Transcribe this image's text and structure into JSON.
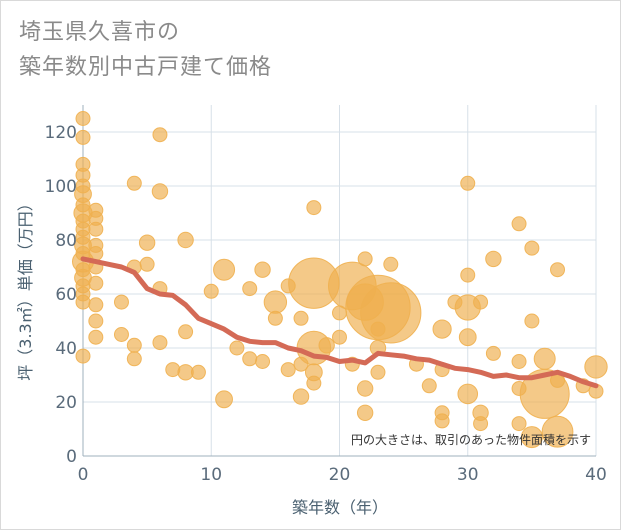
{
  "title": {
    "line1": "埼玉県久喜市の",
    "line2": "築年数別中古戸建て価格"
  },
  "colors": {
    "bubble": "#efb04f",
    "trend": "#d46a56",
    "grid": "#d7e0e8",
    "axis": "#5a6b7b"
  },
  "chart_data": {
    "type": "scatter",
    "xlabel": "築年数（年）",
    "ylabel": "坪（3.3㎡）単価（万円）",
    "xlim": [
      0,
      40
    ],
    "ylim": [
      0,
      130
    ],
    "xticks": [
      0,
      10,
      20,
      30,
      40
    ],
    "yticks": [
      0,
      20,
      40,
      60,
      80,
      100,
      120
    ],
    "grid": true,
    "annotation": "円の大きさは、取引のあった物件面積を示す",
    "points": [
      {
        "x": 0,
        "y": 125,
        "s": 1
      },
      {
        "x": 0,
        "y": 118,
        "s": 1
      },
      {
        "x": 0,
        "y": 108,
        "s": 1
      },
      {
        "x": 0,
        "y": 104,
        "s": 1
      },
      {
        "x": 0,
        "y": 100,
        "s": 1
      },
      {
        "x": 0,
        "y": 97,
        "s": 1.2
      },
      {
        "x": 0,
        "y": 93,
        "s": 1
      },
      {
        "x": 0,
        "y": 90,
        "s": 1.3
      },
      {
        "x": 0,
        "y": 87,
        "s": 1
      },
      {
        "x": 0,
        "y": 84,
        "s": 1
      },
      {
        "x": 0,
        "y": 81,
        "s": 1
      },
      {
        "x": 0,
        "y": 78,
        "s": 1.2
      },
      {
        "x": 0,
        "y": 75,
        "s": 1
      },
      {
        "x": 0,
        "y": 72,
        "s": 1.5
      },
      {
        "x": 0,
        "y": 69,
        "s": 1
      },
      {
        "x": 0,
        "y": 66,
        "s": 1.2
      },
      {
        "x": 0,
        "y": 63,
        "s": 1
      },
      {
        "x": 0,
        "y": 60,
        "s": 1
      },
      {
        "x": 0,
        "y": 57,
        "s": 1
      },
      {
        "x": 0,
        "y": 37,
        "s": 1
      },
      {
        "x": 1,
        "y": 91,
        "s": 1
      },
      {
        "x": 1,
        "y": 88,
        "s": 1
      },
      {
        "x": 1,
        "y": 84,
        "s": 1
      },
      {
        "x": 1,
        "y": 78,
        "s": 1
      },
      {
        "x": 1,
        "y": 75,
        "s": 1
      },
      {
        "x": 1,
        "y": 70,
        "s": 1
      },
      {
        "x": 1,
        "y": 64,
        "s": 1
      },
      {
        "x": 1,
        "y": 56,
        "s": 1
      },
      {
        "x": 1,
        "y": 50,
        "s": 1
      },
      {
        "x": 1,
        "y": 44,
        "s": 1
      },
      {
        "x": 3,
        "y": 57,
        "s": 1
      },
      {
        "x": 3,
        "y": 45,
        "s": 1
      },
      {
        "x": 4,
        "y": 101,
        "s": 1
      },
      {
        "x": 4,
        "y": 70,
        "s": 1
      },
      {
        "x": 4,
        "y": 41,
        "s": 1
      },
      {
        "x": 4,
        "y": 36,
        "s": 1
      },
      {
        "x": 5,
        "y": 79,
        "s": 1.1
      },
      {
        "x": 5,
        "y": 71,
        "s": 1
      },
      {
        "x": 6,
        "y": 119,
        "s": 1
      },
      {
        "x": 6,
        "y": 98,
        "s": 1.1
      },
      {
        "x": 6,
        "y": 62,
        "s": 1
      },
      {
        "x": 6,
        "y": 42,
        "s": 1
      },
      {
        "x": 7,
        "y": 32,
        "s": 1
      },
      {
        "x": 8,
        "y": 80,
        "s": 1.1
      },
      {
        "x": 8,
        "y": 46,
        "s": 1
      },
      {
        "x": 8,
        "y": 31,
        "s": 1.1
      },
      {
        "x": 9,
        "y": 31,
        "s": 1
      },
      {
        "x": 10,
        "y": 61,
        "s": 1
      },
      {
        "x": 11,
        "y": 69,
        "s": 1.5
      },
      {
        "x": 11,
        "y": 21,
        "s": 1.2
      },
      {
        "x": 12,
        "y": 40,
        "s": 1
      },
      {
        "x": 13,
        "y": 62,
        "s": 1
      },
      {
        "x": 13,
        "y": 36,
        "s": 1
      },
      {
        "x": 14,
        "y": 69,
        "s": 1.1
      },
      {
        "x": 14,
        "y": 35,
        "s": 1
      },
      {
        "x": 15,
        "y": 57,
        "s": 1.6
      },
      {
        "x": 15,
        "y": 51,
        "s": 1
      },
      {
        "x": 16,
        "y": 63,
        "s": 1
      },
      {
        "x": 16,
        "y": 32,
        "s": 1
      },
      {
        "x": 17,
        "y": 51,
        "s": 1
      },
      {
        "x": 17,
        "y": 34,
        "s": 1
      },
      {
        "x": 17,
        "y": 22,
        "s": 1.1
      },
      {
        "x": 18,
        "y": 92,
        "s": 1
      },
      {
        "x": 18,
        "y": 64,
        "s": 3.6
      },
      {
        "x": 18,
        "y": 40,
        "s": 2.4
      },
      {
        "x": 18,
        "y": 31,
        "s": 1.2
      },
      {
        "x": 18,
        "y": 27,
        "s": 1
      },
      {
        "x": 19,
        "y": 41,
        "s": 1.1
      },
      {
        "x": 20,
        "y": 53,
        "s": 1
      },
      {
        "x": 20,
        "y": 44,
        "s": 1
      },
      {
        "x": 21,
        "y": 63,
        "s": 3.4
      },
      {
        "x": 21,
        "y": 34,
        "s": 1
      },
      {
        "x": 22,
        "y": 73,
        "s": 1
      },
      {
        "x": 22,
        "y": 57,
        "s": 2.6
      },
      {
        "x": 22,
        "y": 25,
        "s": 1.1
      },
      {
        "x": 22,
        "y": 16,
        "s": 1.1
      },
      {
        "x": 23,
        "y": 55,
        "s": 4.6
      },
      {
        "x": 23,
        "y": 47,
        "s": 1
      },
      {
        "x": 23,
        "y": 40,
        "s": 1.1
      },
      {
        "x": 23,
        "y": 31,
        "s": 1
      },
      {
        "x": 24,
        "y": 71,
        "s": 1
      },
      {
        "x": 24,
        "y": 53,
        "s": 4.3
      },
      {
        "x": 26,
        "y": 34,
        "s": 1
      },
      {
        "x": 27,
        "y": 26,
        "s": 1
      },
      {
        "x": 28,
        "y": 47,
        "s": 1.3
      },
      {
        "x": 28,
        "y": 32,
        "s": 1
      },
      {
        "x": 28,
        "y": 16,
        "s": 1
      },
      {
        "x": 28,
        "y": 13,
        "s": 1
      },
      {
        "x": 29,
        "y": 57,
        "s": 1
      },
      {
        "x": 30,
        "y": 101,
        "s": 1
      },
      {
        "x": 30,
        "y": 67,
        "s": 1
      },
      {
        "x": 30,
        "y": 55,
        "s": 1.8
      },
      {
        "x": 30,
        "y": 44,
        "s": 1.2
      },
      {
        "x": 30,
        "y": 23,
        "s": 1.4
      },
      {
        "x": 31,
        "y": 57,
        "s": 1
      },
      {
        "x": 31,
        "y": 16,
        "s": 1.1
      },
      {
        "x": 31,
        "y": 12,
        "s": 1
      },
      {
        "x": 32,
        "y": 73,
        "s": 1.1
      },
      {
        "x": 32,
        "y": 38,
        "s": 1
      },
      {
        "x": 34,
        "y": 86,
        "s": 1
      },
      {
        "x": 34,
        "y": 35,
        "s": 1
      },
      {
        "x": 34,
        "y": 25,
        "s": 1
      },
      {
        "x": 34,
        "y": 12,
        "s": 1
      },
      {
        "x": 35,
        "y": 77,
        "s": 1
      },
      {
        "x": 35,
        "y": 50,
        "s": 1
      },
      {
        "x": 35,
        "y": 7,
        "s": 1.5
      },
      {
        "x": 36,
        "y": 36,
        "s": 1.5
      },
      {
        "x": 36,
        "y": 23,
        "s": 3.5
      },
      {
        "x": 37,
        "y": 69,
        "s": 1
      },
      {
        "x": 37,
        "y": 28,
        "s": 1
      },
      {
        "x": 37,
        "y": 9,
        "s": 2.2
      },
      {
        "x": 39,
        "y": 26,
        "s": 1
      },
      {
        "x": 40,
        "y": 33,
        "s": 1.6
      },
      {
        "x": 40,
        "y": 24,
        "s": 1
      }
    ],
    "trend": [
      {
        "x": 0,
        "y": 73
      },
      {
        "x": 1,
        "y": 72
      },
      {
        "x": 2,
        "y": 71
      },
      {
        "x": 3,
        "y": 70
      },
      {
        "x": 4,
        "y": 68
      },
      {
        "x": 5,
        "y": 62
      },
      {
        "x": 6,
        "y": 60
      },
      {
        "x": 7,
        "y": 59.5
      },
      {
        "x": 8,
        "y": 56
      },
      {
        "x": 9,
        "y": 51
      },
      {
        "x": 10,
        "y": 49
      },
      {
        "x": 11,
        "y": 47
      },
      {
        "x": 12,
        "y": 44
      },
      {
        "x": 13,
        "y": 42.5
      },
      {
        "x": 14,
        "y": 42
      },
      {
        "x": 15,
        "y": 42
      },
      {
        "x": 16,
        "y": 40
      },
      {
        "x": 17,
        "y": 39
      },
      {
        "x": 18,
        "y": 37
      },
      {
        "x": 19,
        "y": 36.5
      },
      {
        "x": 20,
        "y": 35
      },
      {
        "x": 21,
        "y": 35.5
      },
      {
        "x": 22,
        "y": 34.5
      },
      {
        "x": 23,
        "y": 38
      },
      {
        "x": 24,
        "y": 37.5
      },
      {
        "x": 25,
        "y": 37
      },
      {
        "x": 26,
        "y": 36
      },
      {
        "x": 27,
        "y": 35.5
      },
      {
        "x": 28,
        "y": 34
      },
      {
        "x": 29,
        "y": 32.5
      },
      {
        "x": 30,
        "y": 32
      },
      {
        "x": 31,
        "y": 31
      },
      {
        "x": 32,
        "y": 29.5
      },
      {
        "x": 33,
        "y": 30
      },
      {
        "x": 34,
        "y": 29
      },
      {
        "x": 35,
        "y": 29
      },
      {
        "x": 36,
        "y": 30
      },
      {
        "x": 37,
        "y": 31
      },
      {
        "x": 38,
        "y": 29.5
      },
      {
        "x": 39,
        "y": 27.5
      },
      {
        "x": 40,
        "y": 26
      }
    ]
  }
}
